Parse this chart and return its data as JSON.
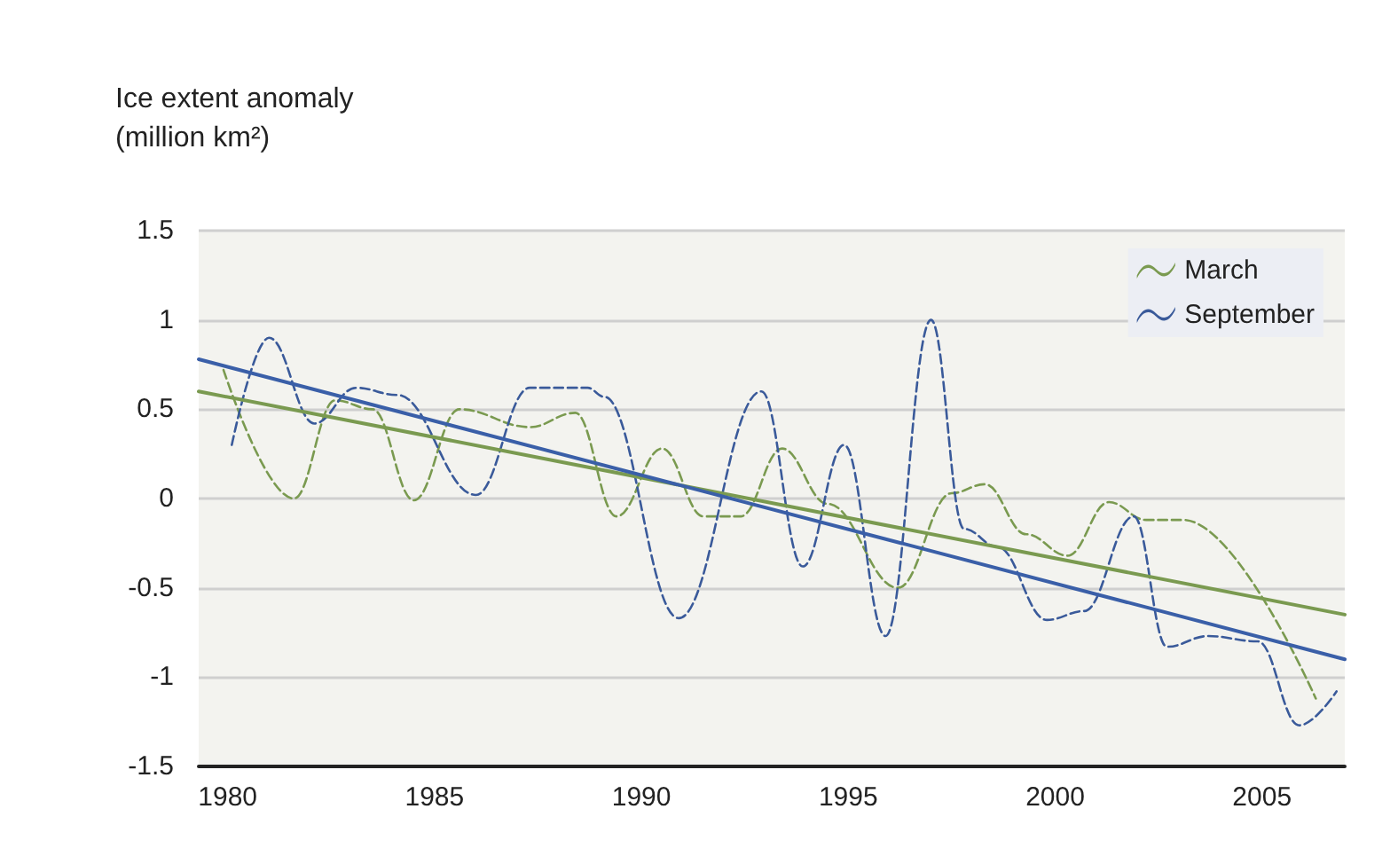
{
  "chart_data": {
    "type": "line",
    "ylabel": "Ice extent anomaly (million km²)",
    "xlim": [
      1979.3,
      2007
    ],
    "xticks": [
      1980,
      1985,
      1990,
      1995,
      2000,
      2005
    ],
    "ylim": [
      -1.5,
      1.5
    ],
    "yticks": [
      -1.5,
      -1,
      -0.5,
      0,
      0.5,
      1,
      1.5
    ],
    "grid": "y",
    "legend": "top right",
    "marker": "none",
    "series": [
      {
        "name": "March",
        "color": "#7a9a50",
        "line_style": "dashed",
        "x": [
          1979.9,
          1981.6,
          1982.6,
          1983.5,
          1984.5,
          1985.6,
          1987.3,
          1988.4,
          1989.4,
          1990.5,
          1991.5,
          1992.4,
          1993.4,
          1994.5,
          1996.2,
          1997.5,
          1998.3,
          1999.3,
          2000.3,
          2001.3,
          2002.2,
          2003.1,
          2006.3
        ],
        "values": [
          0.72,
          0.0,
          0.55,
          0.5,
          -0.01,
          0.5,
          0.4,
          0.48,
          -0.1,
          0.28,
          -0.1,
          -0.1,
          0.28,
          -0.03,
          -0.5,
          0.03,
          0.08,
          -0.2,
          -0.32,
          -0.02,
          -0.12,
          -0.12,
          -1.12
        ]
      },
      {
        "name": "September",
        "color": "#3a5a9a",
        "line_style": "dashed",
        "x": [
          1980.1,
          1981,
          1982.1,
          1983.1,
          1984.1,
          1986,
          1987.3,
          1988.7,
          1989.1,
          1990.9,
          1992.9,
          1993.9,
          1994.9,
          1995.9,
          1997,
          1997.8,
          1998.6,
          1999.8,
          2000.7,
          2001.9,
          2002.7,
          2003.7,
          2004.9,
          2005.9,
          2006.8
        ],
        "values": [
          0.3,
          0.9,
          0.42,
          0.62,
          0.58,
          0.02,
          0.62,
          0.62,
          0.57,
          -0.67,
          0.6,
          -0.38,
          0.3,
          -0.77,
          1.0,
          -0.17,
          -0.27,
          -0.68,
          -0.63,
          -0.1,
          -0.83,
          -0.77,
          -0.8,
          -1.27,
          -1.08
        ]
      },
      {
        "color": "#7a9a50",
        "line_style": "solid",
        "x": [
          1979.3,
          2007
        ],
        "values": [
          0.6,
          -0.65
        ]
      },
      {
        "color": "#3a5fa8",
        "line_style": "solid",
        "x": [
          1979.3,
          2007
        ],
        "values": [
          0.78,
          -0.9
        ]
      }
    ]
  }
}
